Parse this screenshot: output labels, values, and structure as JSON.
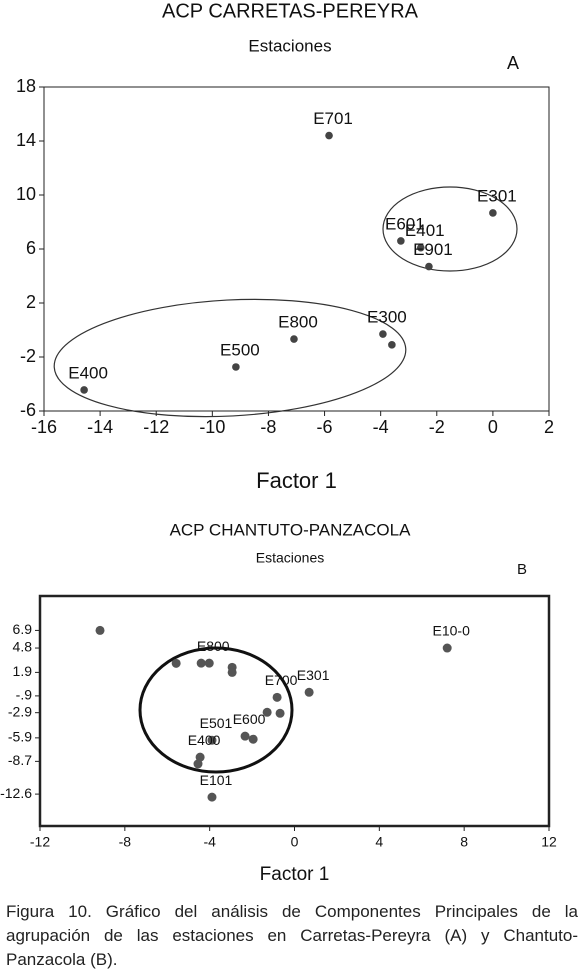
{
  "chart_data": [
    {
      "type": "scatter",
      "title": "ACP CARRETAS-PEREYRA",
      "subtitle": "Estaciones",
      "panel": "A",
      "x_label": "Factor 1",
      "x": [
        -5.84,
        0.0,
        -3.28,
        -2.57,
        -2.28,
        -3.92,
        -3.6,
        -7.09,
        -9.16,
        -14.57
      ],
      "values": [
        14.4,
        8.67,
        6.6,
        6.1,
        4.7,
        -0.3,
        -1.1,
        -0.67,
        -2.74,
        -4.44
      ],
      "labels": [
        "E701",
        "E301",
        "E601",
        "E401",
        "E901",
        "E300",
        null,
        "E800",
        "E500",
        "E400"
      ],
      "color": "#444444",
      "xlim": [
        -16,
        2
      ],
      "xticks": [
        -16,
        -14,
        -12,
        -10,
        -8,
        -6,
        -4,
        -2,
        0,
        2
      ],
      "ylim": [
        -6,
        18
      ],
      "yticks": [
        -6,
        -2,
        2,
        6,
        10,
        14,
        18
      ]
    },
    {
      "type": "scatter",
      "title": "ACP CHANTUTO-PANZACOLA",
      "subtitle": "Estaciones",
      "panel": "B",
      "x_label": "Factor 1",
      "x": [
        -9.17,
        7.2,
        -5.58,
        -4.4,
        -4.02,
        -2.94,
        -2.94,
        -0.82,
        -1.29,
        -0.68,
        0.69,
        -3.89,
        -2.33,
        -1.95,
        -4.45,
        -4.55,
        -3.89
      ],
      "values": [
        6.9,
        4.8,
        2.98,
        3.0,
        3.0,
        2.5,
        1.9,
        -1.07,
        -2.85,
        -2.97,
        -0.47,
        -6.18,
        -5.7,
        -6.06,
        -8.2,
        -9.0,
        -12.96
      ],
      "labels": [
        null,
        "E10-0",
        null,
        null,
        "E800",
        null,
        null,
        "E700",
        null,
        null,
        "E301",
        "E501",
        "E600",
        null,
        "E400",
        null,
        "E101"
      ],
      "color": "#555555",
      "xlim": [
        -12,
        12
      ],
      "xticks": [
        -12,
        -8,
        -4,
        0,
        4,
        8,
        12
      ],
      "ylim": [
        -16.4,
        11
      ],
      "yticks": [
        6.9,
        4.8,
        1.9,
        {
          "value": -0.9,
          "label": "-.9"
        },
        -2.9,
        -5.9,
        -8.7,
        -12.6
      ]
    }
  ],
  "caption": "Figura 10. Gráfico del análisis de Componentes Principales de la agrupación de las estaciones en Carretas-Pereyra (A) y Chantuto-Panzacola (B)."
}
